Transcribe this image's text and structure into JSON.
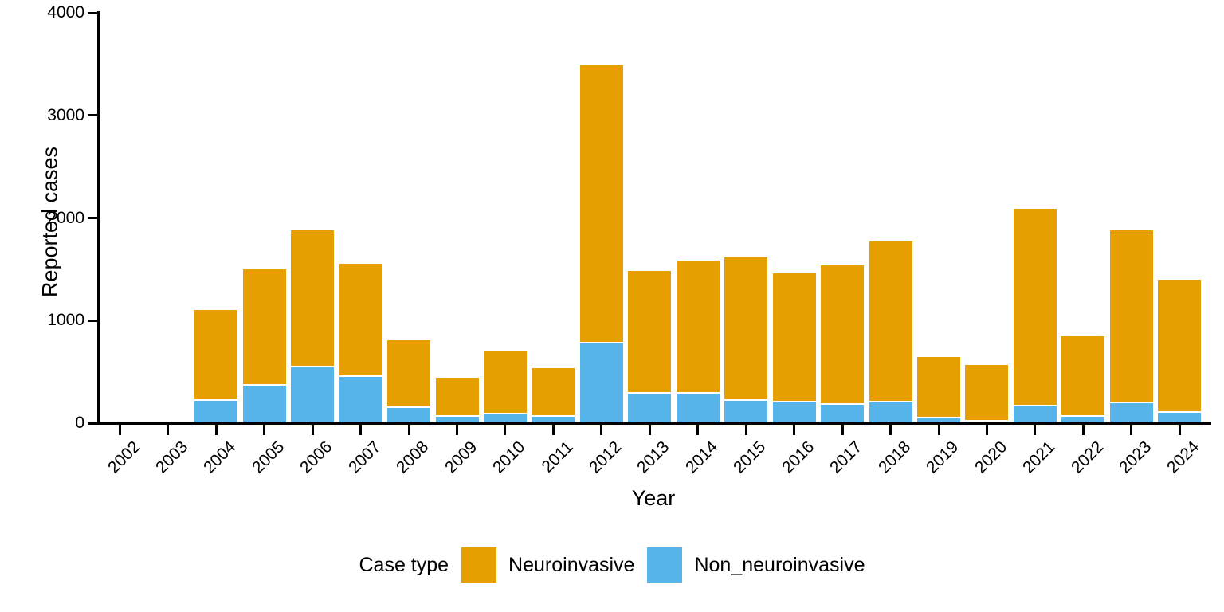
{
  "figure": {
    "background": "#FFFFFF",
    "text_color": "#000000",
    "axis_color": "#000000"
  },
  "legend": {
    "title": "Case type",
    "items": [
      {
        "label": "Neuroinvasive",
        "color": "#E69F00"
      },
      {
        "label": "Non_neuroinvasive",
        "color": "#56B4E9"
      }
    ]
  },
  "chart_data": {
    "type": "bar",
    "stacked": true,
    "title": "",
    "xlabel": "Year",
    "ylabel": "Reported cases",
    "ylim": [
      0,
      4000
    ],
    "yticks": [
      0,
      1000,
      2000,
      3000,
      4000
    ],
    "grid": false,
    "legend_position": "bottom",
    "categories": [
      "2002",
      "2003",
      "2004",
      "2005",
      "2006",
      "2007",
      "2008",
      "2009",
      "2010",
      "2011",
      "2012",
      "2013",
      "2014",
      "2015",
      "2016",
      "2017",
      "2018",
      "2019",
      "2020",
      "2021",
      "2022",
      "2023",
      "2024"
    ],
    "series": [
      {
        "name": "Non_neuroinvasive",
        "color": "#56B4E9",
        "stack_position": "bottom",
        "values": [
          0,
          0,
          230,
          380,
          555,
          465,
          160,
          75,
          100,
          75,
          795,
          305,
          300,
          230,
          215,
          190,
          220,
          60,
          30,
          180,
          80,
          210,
          115
        ]
      },
      {
        "name": "Neuroinvasive",
        "color": "#E69F00",
        "stack_position": "top",
        "values": [
          0,
          0,
          875,
          1120,
          1325,
          1090,
          645,
          370,
          610,
          465,
          2695,
          1180,
          1285,
          1385,
          1245,
          1350,
          1550,
          585,
          540,
          1910,
          770,
          1670,
          1285
        ]
      }
    ],
    "totals": [
      0,
      0,
      1105,
      1500,
      1880,
      1555,
      805,
      445,
      710,
      540,
      3490,
      1485,
      1585,
      1615,
      1460,
      1540,
      1770,
      645,
      570,
      2090,
      850,
      1880,
      1400
    ]
  }
}
